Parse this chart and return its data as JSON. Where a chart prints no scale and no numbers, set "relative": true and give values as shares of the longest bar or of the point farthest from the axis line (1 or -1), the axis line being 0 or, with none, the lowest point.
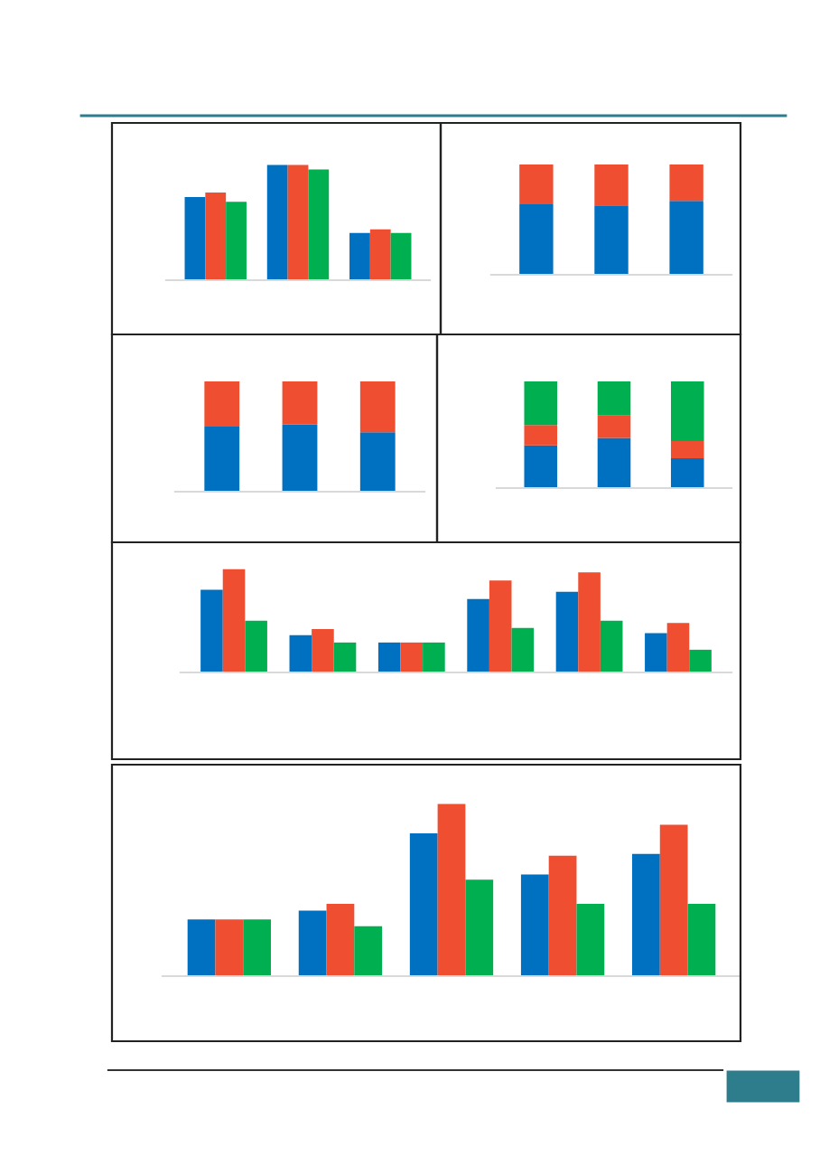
{
  "chart_data": [
    {
      "type": "bar",
      "relative": true,
      "categories": [
        null,
        null,
        null
      ],
      "series": [
        {
          "color": "#0070c0",
          "values": [
            0.72,
            1,
            0.41
          ]
        },
        {
          "color": "#f04e30",
          "values": [
            0.76,
            1,
            0.44
          ]
        },
        {
          "color": "#00b050",
          "values": [
            0.68,
            0.96,
            0.41
          ]
        }
      ]
    },
    {
      "type": "bar",
      "relative": true,
      "stacked": true,
      "categories": [
        null,
        null,
        null
      ],
      "series": [
        {
          "color": "#0070c0",
          "values": [
            0.64,
            0.63,
            0.67
          ]
        },
        {
          "color": "#f04e30",
          "values": [
            0.36,
            0.37,
            0.33
          ]
        }
      ]
    },
    {
      "type": "bar",
      "relative": true,
      "stacked": true,
      "categories": [
        null,
        null,
        null
      ],
      "series": [
        {
          "color": "#0070c0",
          "values": [
            0.59,
            0.61,
            0.54
          ]
        },
        {
          "color": "#f04e30",
          "values": [
            0.41,
            0.39,
            0.46
          ]
        }
      ]
    },
    {
      "type": "bar",
      "relative": true,
      "stacked": true,
      "categories": [
        null,
        null,
        null
      ],
      "series": [
        {
          "color": "#0070c0",
          "values": [
            0.4,
            0.47,
            0.28
          ]
        },
        {
          "color": "#f04e30",
          "values": [
            0.19,
            0.21,
            0.16
          ]
        },
        {
          "color": "#00b050",
          "values": [
            0.41,
            0.32,
            0.56
          ]
        }
      ]
    },
    {
      "type": "bar",
      "relative": true,
      "categories": [
        null,
        null,
        null,
        null,
        null,
        null
      ],
      "series": [
        {
          "color": "#0070c0",
          "values": [
            0.8,
            0.36,
            0.29,
            0.71,
            0.78,
            0.38
          ]
        },
        {
          "color": "#f04e30",
          "values": [
            1,
            0.42,
            0.29,
            0.89,
            0.97,
            0.48
          ]
        },
        {
          "color": "#00b050",
          "values": [
            0.5,
            0.29,
            0.29,
            0.43,
            0.5,
            0.22
          ]
        }
      ]
    },
    {
      "type": "bar",
      "relative": true,
      "categories": [
        null,
        null,
        null,
        null,
        null
      ],
      "series": [
        {
          "color": "#0070c0",
          "values": [
            0.33,
            0.38,
            0.83,
            0.59,
            0.71
          ]
        },
        {
          "color": "#f04e30",
          "values": [
            0.33,
            0.42,
            1,
            0.7,
            0.88
          ]
        },
        {
          "color": "#00b050",
          "values": [
            0.33,
            0.29,
            0.56,
            0.42,
            0.42
          ]
        }
      ]
    }
  ]
}
